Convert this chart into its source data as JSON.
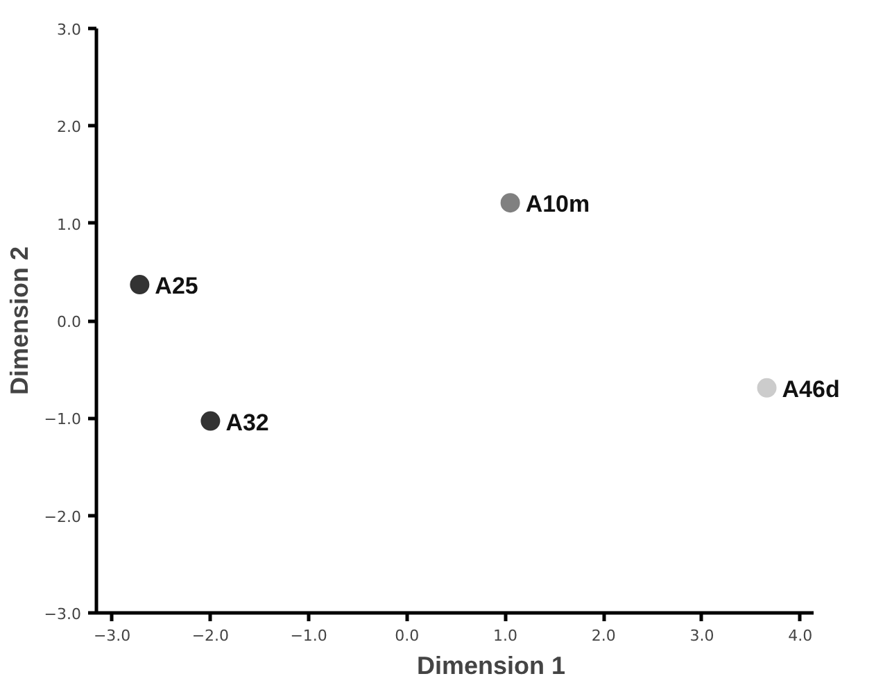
{
  "chart_data": {
    "type": "scatter",
    "xlabel": "Dimension 1",
    "ylabel": "Dimension 2",
    "xlim": [
      -3.16,
      4.14
    ],
    "ylim": [
      -3,
      3
    ],
    "xticks": [
      {
        "value": -3,
        "label": "−3.0"
      },
      {
        "value": -2,
        "label": "−2.0"
      },
      {
        "value": -1,
        "label": "−1.0"
      },
      {
        "value": 0,
        "label": "0.0"
      },
      {
        "value": 1,
        "label": "1.0"
      },
      {
        "value": 2,
        "label": "2.0"
      },
      {
        "value": 3,
        "label": "3.0"
      },
      {
        "value": 4,
        "label": "4.0"
      }
    ],
    "yticks": [
      {
        "value": -3,
        "label": "−3.0"
      },
      {
        "value": -2,
        "label": "−2.0"
      },
      {
        "value": -1,
        "label": "−1.0"
      },
      {
        "value": 0,
        "label": "0.0"
      },
      {
        "value": 1,
        "label": "1.0"
      },
      {
        "value": 2,
        "label": "2.0"
      },
      {
        "value": 3,
        "label": "3.0"
      }
    ],
    "grid": false,
    "marker": "circle",
    "series": [
      {
        "name": "A25",
        "color": "#333333",
        "x": [
          -2.72
        ],
        "values": [
          0.37
        ]
      },
      {
        "name": "A32",
        "color": "#333333",
        "x": [
          -2.0
        ],
        "values": [
          -1.03
        ]
      },
      {
        "name": "A10m",
        "color": "#808080",
        "x": [
          1.05
        ],
        "values": [
          1.21
        ]
      },
      {
        "name": "A46d",
        "color": "#cccccc",
        "x": [
          3.66
        ],
        "values": [
          -0.69
        ]
      }
    ]
  }
}
